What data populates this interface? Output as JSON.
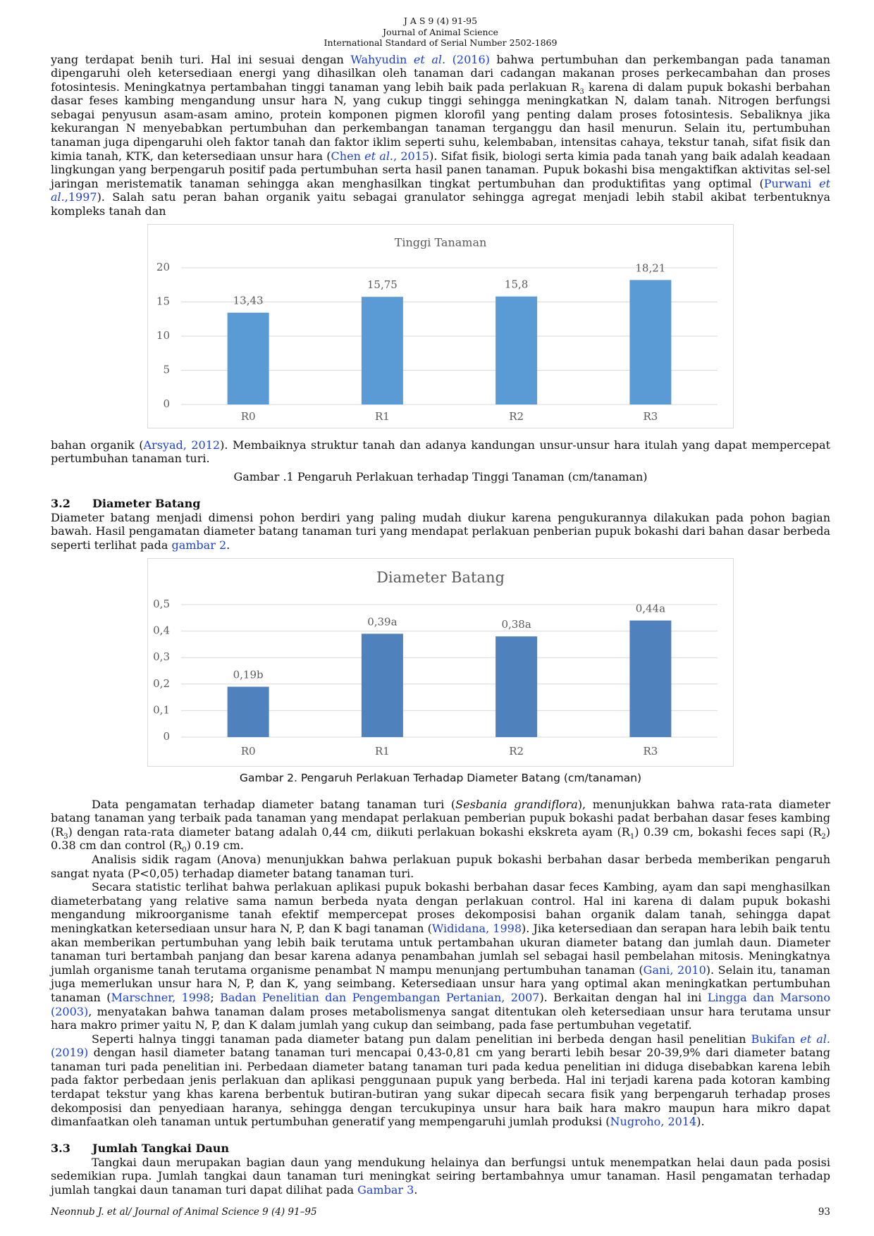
{
  "header": [
    "J A S 9 (4) 91-95",
    "Journal of Animal Science",
    "International Standard of Serial Number 2502-1869"
  ],
  "paragraphs": [
    [
      "yang terdapat benih turi. Hal ini sesuai dengan ",
      {
        "text": "Wahyudin ",
        "style": "link"
      },
      {
        "text": "et al.",
        "style": "link-italic"
      },
      {
        "text": " (2016)",
        "style": "link"
      },
      " bahwa pertumbuhan dan perkembangan pada tanaman dipengaruhi oleh ketersediaan energi yang dihasilkan oleh tanaman dari cadangan makanan proses perkecambahan dan proses fotosintesis. Meningkatnya pertambahan tinggi tanaman yang lebih baik pada perlakuan R",
      {
        "text": "3",
        "style": "sub"
      },
      " karena di dalam pupuk bokashi berbahan dasar feses kambing mengandung unsur hara N, yang cukup tinggi sehingga meningkatkan N, dalam tanah. Nitrogen berfungsi sebagai penyusun asam-asam amino, protein komponen pigmen klorofil yang penting dalam proses fotosintesis. Sebaliknya jika kekurangan N menyebabkan pertumbuhan dan perkembangan tanaman terganggu dan hasil menurun. Selain itu, pertumbuhan tanaman juga dipengaruhi oleh faktor tanah dan faktor iklim seperti suhu, kelembaban, intensitas cahaya, tekstur tanah, sifat fisik dan kimia tanah, KTK, dan ketersediaan unsur hara (",
      {
        "text": "Chen ",
        "style": "link"
      },
      {
        "text": "et al.",
        "style": "link-italic"
      },
      {
        "text": ", 2015",
        "style": "link"
      },
      "). Sifat fisik, biologi serta kimia pada tanah yang baik adalah keadaan lingkungan yang berpengaruh positif pada pertumbuhan serta hasil panen tanaman. Pupuk bokashi bisa mengaktifkan aktivitas sel-sel jaringan meristematik tanaman sehingga akan menghasilkan tingkat pertumbuhan dan produktifitas yang optimal (",
      {
        "text": "Purwani ",
        "style": "link"
      },
      {
        "text": "et al.",
        "style": "link-italic"
      },
      {
        "text": ",1997",
        "style": "link"
      },
      "). Salah satu peran bahan organik yaitu sebagai granulator sehingga agregat menjadi lebih stabil akibat terbentuknya kompleks tanah dan"
    ],
    [
      "bahan organik (",
      {
        "text": "Arsyad, 2012",
        "style": "link"
      },
      "). Membaiknya struktur tanah dan adanya kandungan unsur-unsur hara itulah yang dapat mempercepat pertumbuhan tanaman turi."
    ],
    [
      "Diameter batang menjadi dimensi pohon berdiri yang paling mudah diukur karena pengukurannya dilakukan pada pohon bagian bawah. Hasil pengamatan diameter batang tanaman turi yang mendapat perlakuan penberian pupuk bokashi dari bahan dasar berbeda seperti terlihat pada ",
      {
        "text": "gambar 2",
        "style": "link"
      },
      "."
    ],
    [
      "Data pengamatan terhadap diameter batang tanaman turi (",
      {
        "text": "Sesbania grandiflora",
        "style": "italic"
      },
      "), menunjukkan bahwa rata-rata diameter batang tanaman yang terbaik pada tanaman yang mendapat perlakuan pemberian pupuk bokashi padat berbahan dasar feses kambing (R",
      {
        "text": "3",
        "style": "sub"
      },
      ") dengan rata-rata diameter batang adalah 0,44 cm, diikuti perlakuan bokashi ekskreta ayam (R",
      {
        "text": "1",
        "style": "sub"
      },
      ") 0.39 cm, bokashi feces sapi (R",
      {
        "text": "2",
        "style": "sub"
      },
      ") 0.38 cm dan control (R",
      {
        "text": "0",
        "style": "sub"
      },
      ") 0.19 cm."
    ],
    [
      "Analisis sidik ragam (Anova) menunjukkan bahwa perlakuan pupuk bokashi berbahan dasar berbeda memberikan pengaruh sangat nyata (P<0,05) terhadap diameter batang tanaman turi."
    ],
    [
      "Secara statistic terlihat bahwa perlakuan aplikasi pupuk bokashi berbahan dasar feces Kambing, ayam dan sapi menghasilkan diameterbatang yang relative sama namun berbeda nyata dengan perlakuan control.  Hal ini karena di dalam pupuk bokashi mengandung mikroorganisme tanah efektif mempercepat proses dekomposisi bahan organik dalam tanah, sehingga dapat meningkatkan ketersediaan unsur hara N, P, dan K bagi tanaman (",
      {
        "text": "Wididana, 1998",
        "style": "link"
      },
      "). Jika ketersediaan dan serapan hara lebih baik tentu akan memberikan pertumbuhan yang lebih baik terutama untuk pertambahan ukuran diameter batang dan jumlah daun. Diameter tanaman turi bertambah panjang dan besar karena adanya penambahan jumlah sel sebagai hasil pembelahan mitosis. Meningkatnya jumlah organisme tanah terutama organisme penambat N mampu menunjang pertumbuhan tanaman (",
      {
        "text": "Gani, 2010",
        "style": "link"
      },
      "). Selain itu, tanaman juga memerlukan unsur hara N, P, dan K, yang seimbang. Ketersediaan unsur hara yang optimal akan meningkatkan pertumbuhan tanaman (",
      {
        "text": "Marschner, 1998",
        "style": "link"
      },
      "; ",
      {
        "text": "Badan Penelitian dan Pengembangan Pertanian, 2007",
        "style": "link"
      },
      "). Berkaitan dengan hal ini ",
      {
        "text": "Lingga dan Marsono (2003)",
        "style": "link"
      },
      ", menyatakan bahwa tanaman dalam proses metabolismenya sangat ditentukan oleh ketersediaan unsur hara terutama unsur hara makro primer yaitu N, P, dan K dalam jumlah yang cukup dan seimbang, pada fase pertumbuhan vegetatif."
    ],
    [
      "Seperti halnya tinggi tanaman pada diameter batang pun dalam penelitian ini berbeda dengan hasil penelitian ",
      {
        "text": "Bukifan ",
        "style": "link"
      },
      {
        "text": "et al.",
        "style": "link-italic"
      },
      {
        "text": " (2019)",
        "style": "link"
      },
      "  dengan hasil diameter batang tanaman turi mencapai 0,43-0,81 cm  yang berarti lebih besar 20-39,9% dari diameter batang tanaman turi pada penelitian ini. Perbedaan diameter batang tanaman turi pada kedua penelitian ini diduga disebabkan karena lebih pada faktor perbedaan  jenis perlakuan dan aplikasi penggunaan pupuk yang berbeda. Hal ini terjadi karena pada kotoran kambing terdapat tekstur yang khas karena berbentuk butiran-butiran yang sukar dipecah secara fisik yang berpengaruh terhadap proses dekomposisi dan penyediaan haranya, sehingga dengan tercukupinya unsur hara baik hara makro maupun hara mikro dapat dimanfaatkan oleh tanaman untuk pertumbuhan generatif yang mempengaruhi jumlah produksi (",
      {
        "text": "Nugroho, 2014",
        "style": "link"
      },
      ")."
    ],
    [
      "Tangkai daun merupakan bagian daun yang mendukung helainya dan berfungsi untuk menempatkan helai daun pada posisi sedemikian rupa. Jumlah tangkai daun tanaman turi meningkat seiring bertambahnya umur tanaman. Hasil pengamatan terhadap jumlah tangkai daun tanaman turi dapat dilihat  pada ",
      {
        "text": "Gambar 3",
        "style": "link"
      },
      "."
    ]
  ],
  "figure_captions": [
    "Gambar .1 Pengaruh Perlakuan terhadap Tinggi Tanaman (cm/tanaman)",
    "Gambar 2. Pengaruh Perlakuan Terhadap Diameter Batang (cm/tanaman)"
  ],
  "sections": [
    {
      "number": "3.2",
      "title": "Diameter Batang"
    },
    {
      "number": "3.3",
      "title": "Jumlah Tangkai Daun"
    }
  ],
  "footer": {
    "citation": "Neonnub J. et al/ Journal of Animal Science 9 (4) 91–95",
    "page": "93"
  },
  "chart_data": [
    {
      "type": "bar",
      "title": "Tinggi Tanaman",
      "categories": [
        "R0",
        "R1",
        "R2",
        "R3"
      ],
      "values": [
        13.43,
        15.75,
        15.8,
        18.21
      ],
      "value_labels": [
        "13,43",
        "15,75",
        "15,8",
        "18,21"
      ],
      "color": "#5b9bd5",
      "ylim": [
        0,
        20
      ],
      "yticks": [
        0,
        5,
        10,
        15,
        20
      ],
      "grid": true
    },
    {
      "type": "bar",
      "title": "Diameter Batang",
      "categories": [
        "R0",
        "R1",
        "R2",
        "R3"
      ],
      "values": [
        0.19,
        0.39,
        0.38,
        0.44
      ],
      "value_labels": [
        "0,19b",
        "0,39a",
        "0,38a",
        "0,44a"
      ],
      "color": "#4f81bd",
      "ylim": [
        0,
        0.5
      ],
      "yticks": [
        0,
        {
          "value": 0.1,
          "label": "0,1"
        },
        {
          "value": 0.2,
          "label": "0,2"
        },
        {
          "value": 0.3,
          "label": "0,3"
        },
        {
          "value": 0.4,
          "label": "0,4"
        },
        {
          "value": 0.5,
          "label": "0,5"
        }
      ],
      "grid": true
    }
  ]
}
